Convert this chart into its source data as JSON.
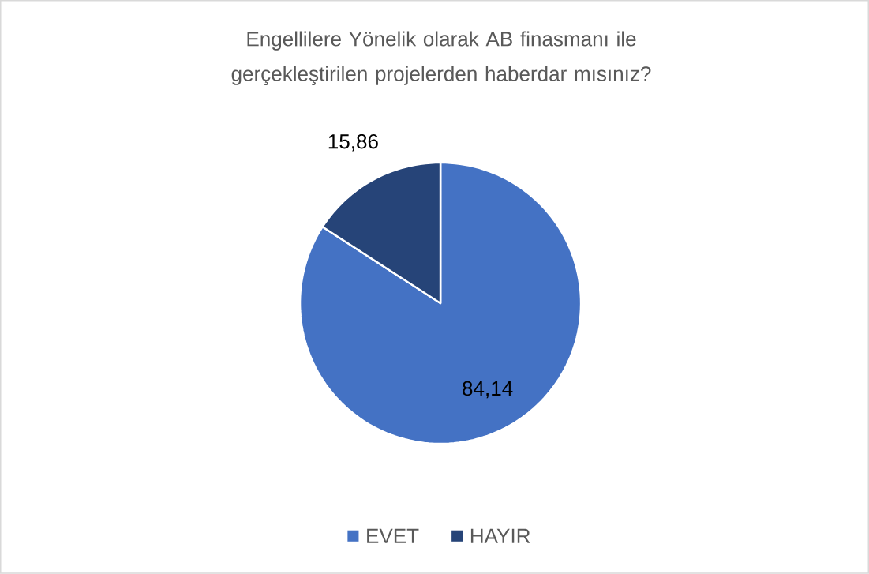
{
  "chart_data": {
    "type": "pie",
    "title": "Engellilere Yönelik olarak AB finasmanı ile gerçekleştirilen projelerden haberdar mısınız?",
    "categories": [
      "EVET",
      "HAYIR"
    ],
    "values": [
      84.14,
      15.86
    ],
    "value_labels": [
      "84,14",
      "15,86"
    ],
    "colors": [
      "#4472c4",
      "#264478"
    ],
    "legend": "bottom"
  }
}
